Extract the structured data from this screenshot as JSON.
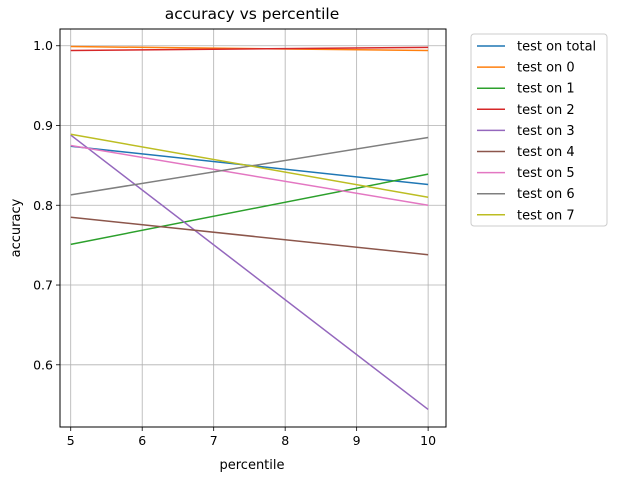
{
  "chart_data": {
    "type": "line",
    "title": "accuracy vs percentile",
    "xlabel": "percentile",
    "ylabel": "accuracy",
    "x": [
      5,
      10
    ],
    "xlim": [
      4.85,
      10.25
    ],
    "ylim": [
      0.522,
      1.021
    ],
    "xticks": [
      5,
      6,
      7,
      8,
      9,
      10
    ],
    "yticks": [
      0.6,
      0.7,
      0.8,
      0.9,
      1.0
    ],
    "ytick_labels": [
      "0.6",
      "0.7",
      "0.8",
      "0.9",
      "1.0"
    ],
    "grid": true,
    "legend_position": "outside right, top",
    "series": [
      {
        "name": "test on total",
        "color": "#1f77b4",
        "values": [
          0.874,
          0.826
        ]
      },
      {
        "name": "test on 0",
        "color": "#ff7f0e",
        "values": [
          0.999,
          0.994
        ]
      },
      {
        "name": "test on 1",
        "color": "#2ca02c",
        "values": [
          0.751,
          0.839
        ]
      },
      {
        "name": "test on 2",
        "color": "#d62728",
        "values": [
          0.994,
          0.998
        ]
      },
      {
        "name": "test on 3",
        "color": "#9467bd",
        "values": [
          0.888,
          0.544
        ]
      },
      {
        "name": "test on 4",
        "color": "#8c564b",
        "values": [
          0.785,
          0.738
        ]
      },
      {
        "name": "test on 5",
        "color": "#e377c2",
        "values": [
          0.875,
          0.8
        ]
      },
      {
        "name": "test on 6",
        "color": "#7f7f7f",
        "values": [
          0.813,
          0.885
        ]
      },
      {
        "name": "test on 7",
        "color": "#bcbd22",
        "values": [
          0.889,
          0.81
        ]
      }
    ]
  }
}
